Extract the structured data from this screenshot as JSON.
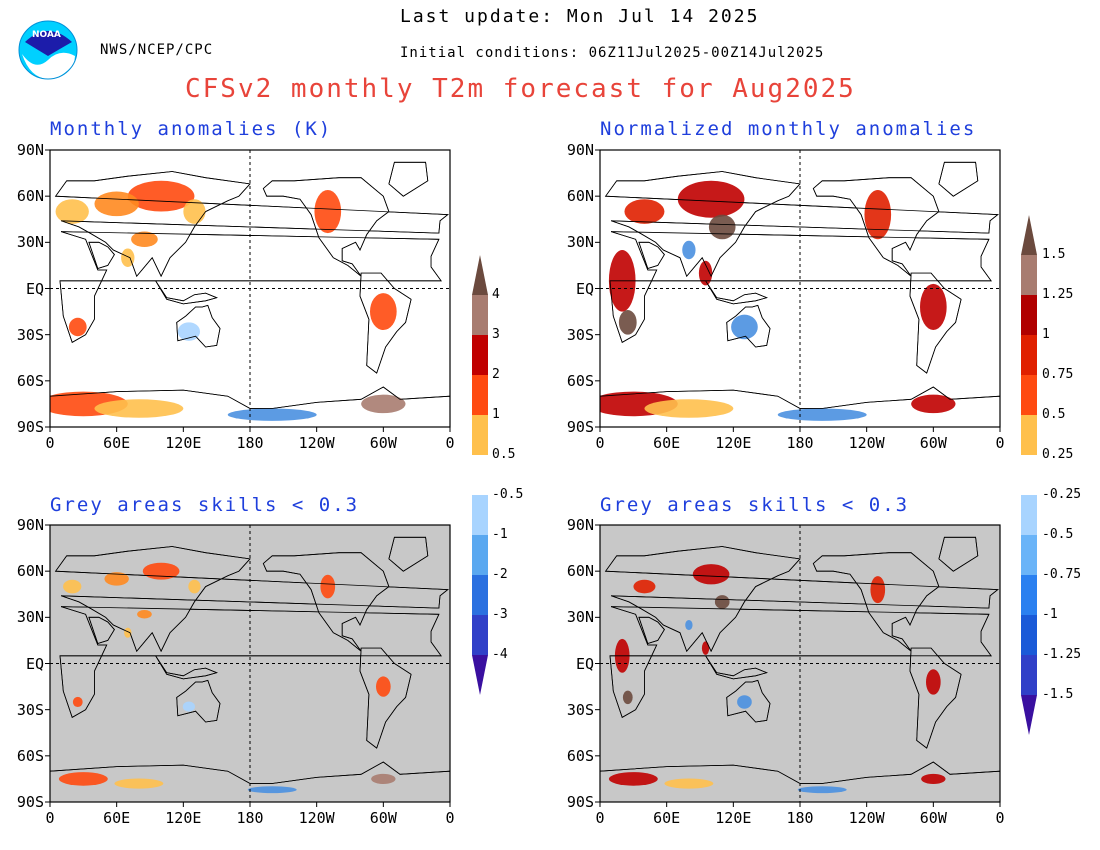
{
  "header": {
    "org": "NWS/NCEP/CPC",
    "logo_text": "NOAA",
    "last_update": "Last update: Mon Jul 14 2025",
    "initial_conditions": "Initial conditions: 06Z11Jul2025-00Z14Jul2025",
    "title": "CFSv2 monthly T2m forecast for Aug2025"
  },
  "colors": {
    "title": "#e8443a",
    "panel_title": "#1f3fdc",
    "grey_mask": "#c8c8c8",
    "land_pos": "#f08030",
    "land_hot": "#d02000",
    "land_cold": "#4a90e0"
  },
  "panels": [
    {
      "id": "top-left",
      "title": "Monthly anomalies (K)",
      "masked": false
    },
    {
      "id": "top-right",
      "title": "Normalized monthly anomalies",
      "masked": false
    },
    {
      "id": "bottom-left",
      "title": "Grey areas skills < 0.3",
      "masked": true
    },
    {
      "id": "bottom-right",
      "title": "Grey areas skills < 0.3",
      "masked": true
    }
  ],
  "axes": {
    "lat_labels": [
      "90N",
      "60N",
      "30N",
      "EQ",
      "30S",
      "60S",
      "90S"
    ],
    "lon_labels": [
      "0",
      "60E",
      "120E",
      "180",
      "120W",
      "60W",
      "0"
    ]
  },
  "colorbars": [
    {
      "id": "absolute",
      "upper_labels": [
        "0.5",
        "1",
        "2",
        "3",
        "4"
      ],
      "lower_labels": [
        "-0.5",
        "-1",
        "-2",
        "-3",
        "-4"
      ],
      "upper_colors": [
        "#ffc04c",
        "#ff4a10",
        "#c00000",
        "#a87c70",
        "#6b4a3e"
      ],
      "lower_colors": [
        "#a8d4ff",
        "#5aa8f0",
        "#2a70e0",
        "#3040c8",
        "#5020b0"
      ],
      "arrow_colors": {
        "top": "#6b4a3e",
        "bottom": "#3a10a0"
      }
    },
    {
      "id": "normalized",
      "upper_labels": [
        "0.25",
        "0.5",
        "0.75",
        "1",
        "1.25",
        "1.5"
      ],
      "lower_labels": [
        "-0.25",
        "-0.5",
        "-0.75",
        "-1",
        "-1.25",
        "-1.5"
      ],
      "upper_colors": [
        "#ffc04c",
        "#ff4a10",
        "#e02000",
        "#b00000",
        "#a87c70",
        "#6b4a3e"
      ],
      "lower_colors": [
        "#a8d4ff",
        "#6ab4f8",
        "#2a80f0",
        "#1a5ad8",
        "#3040c8",
        "#5020b0"
      ],
      "arrow_colors": {
        "top": "#6b4a3e",
        "bottom": "#3a10a0"
      }
    }
  ]
}
